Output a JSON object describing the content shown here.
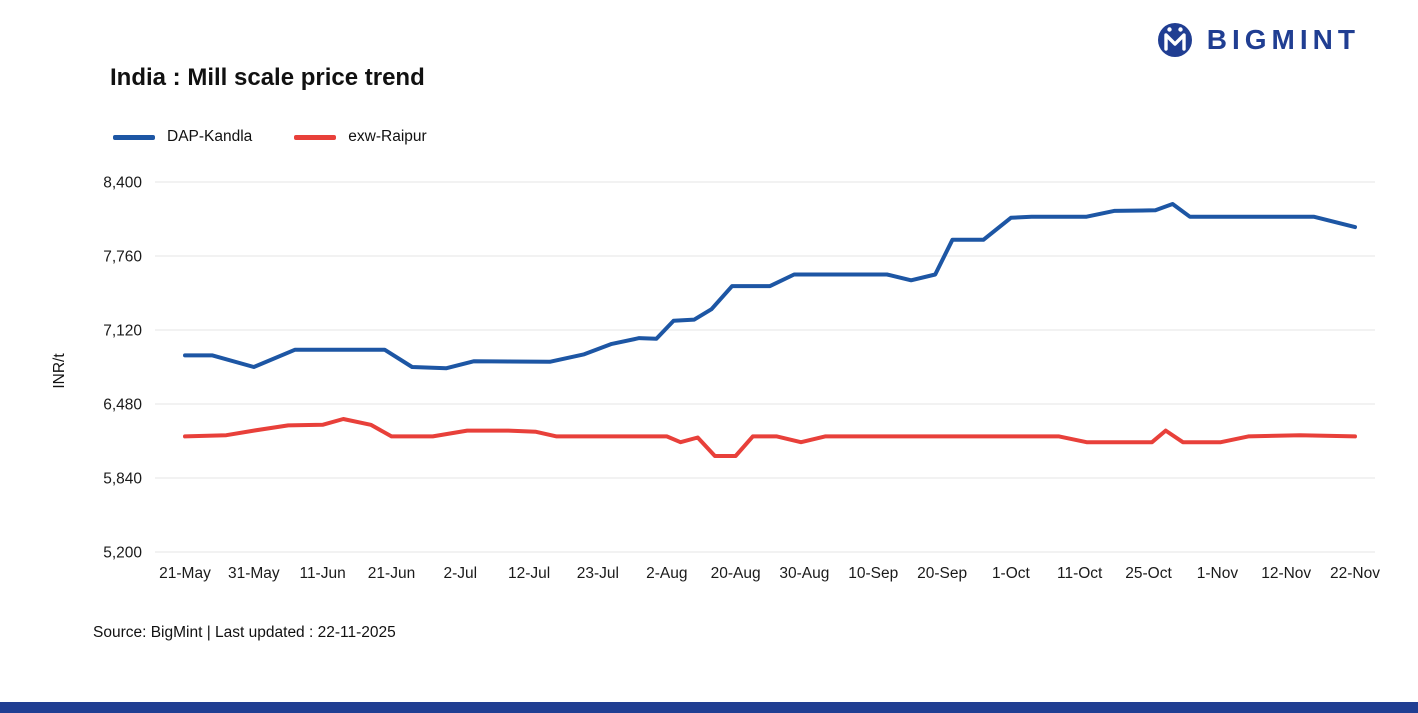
{
  "logo": {
    "text": "BIGMINT"
  },
  "title": "India : Mill scale price trend",
  "source_line": "Source: BigMint | Last updated : 22-11-2025",
  "colors": {
    "navy": "#203e92",
    "blue": "#1d56a4",
    "red": "#e8403a",
    "grid": "#e4e4e4",
    "text": "#111111"
  },
  "chart_data": {
    "type": "line",
    "title": "India : Mill scale price trend",
    "xlabel": "",
    "ylabel": "INR/t",
    "ylim": [
      5200,
      8400
    ],
    "yticks": [
      5200,
      5840,
      6480,
      7120,
      7760,
      8400
    ],
    "ytick_labels": [
      "5,200",
      "5,840",
      "6,480",
      "7,120",
      "7,760",
      "8,400"
    ],
    "categories": [
      "21-May",
      "31-May",
      "11-Jun",
      "21-Jun",
      "2-Jul",
      "12-Jul",
      "23-Jul",
      "2-Aug",
      "20-Aug",
      "30-Aug",
      "10-Sep",
      "20-Sep",
      "1-Oct",
      "11-Oct",
      "25-Oct",
      "1-Nov",
      "12-Nov",
      "22-Nov"
    ],
    "grid": true,
    "legend_position": "top-left",
    "series": [
      {
        "name": "DAP-Kandla",
        "color": "#1d56a4",
        "points": [
          [
            0,
            6900
          ],
          [
            0.4,
            6900
          ],
          [
            1.0,
            6800
          ],
          [
            1.6,
            6950
          ],
          [
            2.9,
            6950
          ],
          [
            3.3,
            6800
          ],
          [
            3.8,
            6790
          ],
          [
            4.2,
            6850
          ],
          [
            5.3,
            6845
          ],
          [
            5.8,
            6910
          ],
          [
            6.2,
            7000
          ],
          [
            6.6,
            7050
          ],
          [
            6.85,
            7045
          ],
          [
            7.1,
            7200
          ],
          [
            7.4,
            7210
          ],
          [
            7.65,
            7300
          ],
          [
            7.95,
            7500
          ],
          [
            8.5,
            7500
          ],
          [
            8.85,
            7600
          ],
          [
            10.2,
            7600
          ],
          [
            10.55,
            7550
          ],
          [
            10.9,
            7600
          ],
          [
            11.15,
            7900
          ],
          [
            11.6,
            7900
          ],
          [
            12.0,
            8090
          ],
          [
            12.3,
            8100
          ],
          [
            13.1,
            8100
          ],
          [
            13.5,
            8150
          ],
          [
            14.1,
            8155
          ],
          [
            14.35,
            8210
          ],
          [
            14.6,
            8100
          ],
          [
            15.2,
            8100
          ],
          [
            16.4,
            8100
          ],
          [
            17,
            8010
          ]
        ]
      },
      {
        "name": "exw-Raipur",
        "color": "#e8403a",
        "points": [
          [
            0,
            6200
          ],
          [
            0.6,
            6210
          ],
          [
            1.0,
            6250
          ],
          [
            1.5,
            6295
          ],
          [
            2.0,
            6300
          ],
          [
            2.3,
            6350
          ],
          [
            2.7,
            6300
          ],
          [
            3.0,
            6200
          ],
          [
            3.6,
            6200
          ],
          [
            4.1,
            6250
          ],
          [
            4.7,
            6250
          ],
          [
            5.1,
            6240
          ],
          [
            5.4,
            6200
          ],
          [
            6.3,
            6200
          ],
          [
            7.0,
            6200
          ],
          [
            7.2,
            6150
          ],
          [
            7.45,
            6190
          ],
          [
            7.7,
            6030
          ],
          [
            8.0,
            6030
          ],
          [
            8.25,
            6200
          ],
          [
            8.6,
            6200
          ],
          [
            8.95,
            6150
          ],
          [
            9.3,
            6200
          ],
          [
            10.2,
            6200
          ],
          [
            11.0,
            6200
          ],
          [
            12.2,
            6200
          ],
          [
            12.7,
            6200
          ],
          [
            13.1,
            6150
          ],
          [
            13.7,
            6150
          ],
          [
            14.05,
            6150
          ],
          [
            14.25,
            6250
          ],
          [
            14.5,
            6150
          ],
          [
            15.05,
            6150
          ],
          [
            15.45,
            6200
          ],
          [
            16.2,
            6210
          ],
          [
            17,
            6200
          ]
        ]
      }
    ]
  }
}
